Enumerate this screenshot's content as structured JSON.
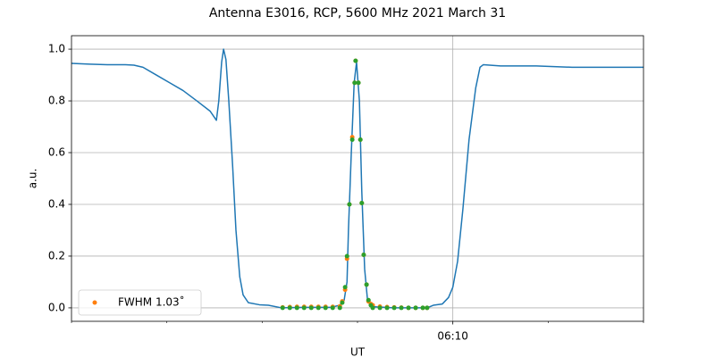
{
  "chart_data": {
    "type": "line",
    "title": "Antenna E3016, RCP, 5600 MHz 2021 March 31",
    "xlabel": "UT",
    "ylabel": "a.u.",
    "xlim": [
      362,
      374
    ],
    "xticks": [
      {
        "value": 370,
        "label": "06:10"
      }
    ],
    "xminorticks": [
      362,
      364,
      366,
      368,
      372,
      374
    ],
    "ylim": [
      -0.052,
      1.052
    ],
    "yticks": [
      {
        "value": 0,
        "label": "0.0"
      },
      0.2,
      0.4,
      0.6,
      0.8,
      {
        "value": 1,
        "label": "1.0"
      }
    ],
    "grid": true,
    "legend": "lower left",
    "series": [
      {
        "type": "line",
        "color": "#1f77b4",
        "x": [
          362,
          362.38,
          362.75,
          363.13,
          363.31,
          363.5,
          363.78,
          364.06,
          364.34,
          364.63,
          364.91,
          365.04,
          365.09,
          365.15,
          365.19,
          365.24,
          365.3,
          365.38,
          365.45,
          365.53,
          365.6,
          365.71,
          365.94,
          366.13,
          366.41,
          366.88,
          367.44,
          367.63,
          367.72,
          367.78,
          367.81,
          367.87,
          367.93,
          367.98,
          368.04,
          368.09,
          368.15,
          368.21,
          368.28,
          368.75,
          369.46,
          369.59,
          369.78,
          369.91,
          370,
          370.1,
          370.21,
          370.34,
          370.48,
          370.57,
          370.64,
          371,
          371.75,
          372.5,
          373.25,
          374
        ],
        "values": [
          0.945,
          0.942,
          0.94,
          0.94,
          0.938,
          0.93,
          0.9,
          0.87,
          0.84,
          0.8,
          0.76,
          0.725,
          0.8,
          0.95,
          1.0,
          0.96,
          0.8,
          0.55,
          0.3,
          0.12,
          0.05,
          0.02,
          0.012,
          0.01,
          0.0,
          0.002,
          0.002,
          0.01,
          0.03,
          0.1,
          0.3,
          0.6,
          0.87,
          0.95,
          0.8,
          0.45,
          0.15,
          0.03,
          0.005,
          0.0,
          0.0,
          0.01,
          0.015,
          0.04,
          0.08,
          0.18,
          0.38,
          0.65,
          0.85,
          0.93,
          0.94,
          0.935,
          0.935,
          0.93,
          0.93,
          0.93
        ]
      },
      {
        "type": "scatter",
        "name": "FWHM 1.03˚",
        "color": "#ff7f0e",
        "x": [
          366.43,
          366.58,
          366.73,
          366.88,
          367.03,
          367.18,
          367.33,
          367.48,
          367.63,
          367.68,
          367.74,
          367.78,
          367.83,
          367.89,
          367.94,
          367.96,
          368.02,
          368.06,
          368.09,
          368.13,
          368.19,
          368.23,
          368.28,
          368.32,
          368.47,
          368.62,
          368.77,
          368.92,
          369.07,
          369.22,
          369.37,
          369.46
        ],
        "values": [
          0.002,
          0.003,
          0.004,
          0.004,
          0.004,
          0.004,
          0.004,
          0.004,
          0.006,
          0.025,
          0.07,
          0.19,
          0.4,
          0.66,
          0.87,
          0.955,
          0.87,
          0.65,
          0.405,
          0.205,
          0.09,
          0.025,
          0.015,
          0.01,
          0.005,
          0.003,
          0.002,
          0.001,
          0,
          0,
          0,
          0
        ]
      },
      {
        "type": "scatter",
        "color": "#2ca02c",
        "x": [
          366.43,
          366.58,
          366.73,
          366.88,
          367.03,
          367.18,
          367.33,
          367.48,
          367.63,
          367.68,
          367.74,
          367.78,
          367.83,
          367.89,
          367.94,
          367.96,
          368.02,
          368.06,
          368.09,
          368.13,
          368.19,
          368.23,
          368.28,
          368.32,
          368.47,
          368.62,
          368.77,
          368.92,
          369.07,
          369.22,
          369.37,
          369.46
        ],
        "values": [
          0,
          0,
          0,
          0,
          0,
          0,
          0,
          0,
          0,
          0.02,
          0.08,
          0.2,
          0.4,
          0.65,
          0.87,
          0.955,
          0.87,
          0.65,
          0.405,
          0.205,
          0.09,
          0.03,
          0.01,
          0,
          0,
          0,
          0,
          0,
          0,
          0,
          0,
          0
        ]
      }
    ]
  }
}
